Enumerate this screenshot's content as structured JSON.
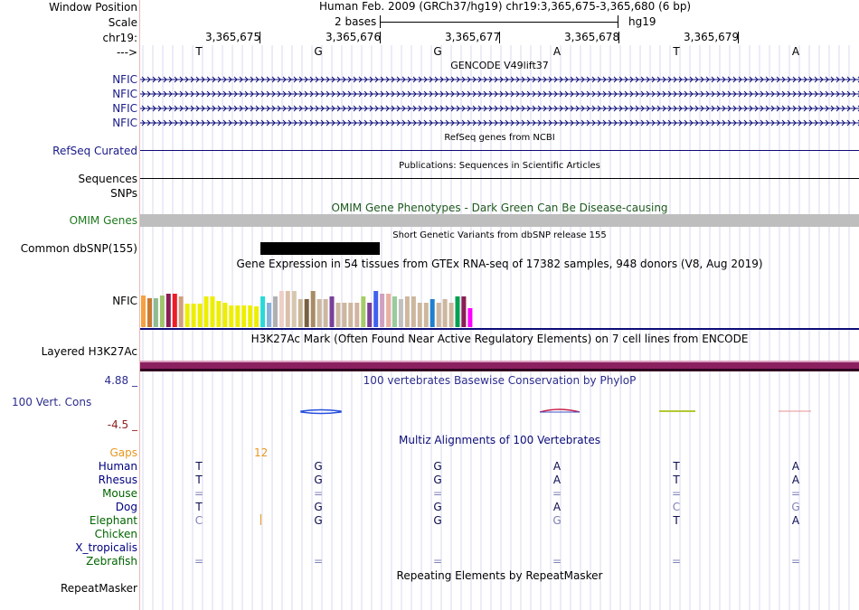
{
  "header": {
    "window_position_label": "Window Position",
    "window_position_value": "Human Feb. 2009 (GRCh37/hg19)   chr19:3,365,675-3,365,680 (6 bp)",
    "scale_label": "Scale",
    "scale_value": "2 bases",
    "assembly": "hg19",
    "chrom_label": "chr19:",
    "coords": [
      "3,365,675",
      "3,365,676",
      "3,365,677",
      "3,365,678",
      "3,365,679"
    ],
    "strand_label": "--->",
    "bases": [
      "T",
      "G",
      "G",
      "A",
      "T",
      "A"
    ]
  },
  "gencode": {
    "title": "GENCODE V49lift37",
    "genes": [
      "NFIC",
      "NFIC",
      "NFIC",
      "NFIC"
    ]
  },
  "refseq": {
    "label": "RefSeq Curated",
    "title": "RefSeq genes from NCBI"
  },
  "publications": {
    "label": "Sequences",
    "title": "Publications: Sequences in Scientific Articles"
  },
  "snps": {
    "label": "SNPs"
  },
  "omim": {
    "label": "OMIM Genes",
    "title": "OMIM Gene Phenotypes - Dark Green Can Be Disease-causing",
    "bar_color": "#bebebe"
  },
  "dbsnp": {
    "label": "Common dbSNP(155)",
    "title": "Short Genetic Variants from dbSNP release 155"
  },
  "gtex": {
    "label": "NFIC",
    "title": "Gene Expression in 54 tissues from GTEx RNA-seq of 17382 samples, 948 donors (V8, Aug 2019)",
    "bars": [
      {
        "level": 0.58,
        "color": "#f5a142"
      },
      {
        "level": 0.53,
        "color": "#ca7a30"
      },
      {
        "level": 0.53,
        "color": "#8fbc8f"
      },
      {
        "level": 0.58,
        "color": "#a0c46c"
      },
      {
        "level": 0.6,
        "color": "#8b1e52"
      },
      {
        "level": 0.6,
        "color": "#ee1c24"
      },
      {
        "level": 0.55,
        "color": "#d0a080"
      },
      {
        "level": 0.42,
        "color": "#eeee00"
      },
      {
        "level": 0.42,
        "color": "#eeee00"
      },
      {
        "level": 0.42,
        "color": "#eeee00"
      },
      {
        "level": 0.55,
        "color": "#eeee00"
      },
      {
        "level": 0.55,
        "color": "#eeee00"
      },
      {
        "level": 0.48,
        "color": "#eeee00"
      },
      {
        "level": 0.45,
        "color": "#eeee00"
      },
      {
        "level": 0.4,
        "color": "#eeee00"
      },
      {
        "level": 0.4,
        "color": "#eeee00"
      },
      {
        "level": 0.4,
        "color": "#eeee00"
      },
      {
        "level": 0.4,
        "color": "#eeee00"
      },
      {
        "level": 0.38,
        "color": "#eeee00"
      },
      {
        "level": 0.55,
        "color": "#29d9d9"
      },
      {
        "level": 0.45,
        "color": "#8ab1d9"
      },
      {
        "level": 0.55,
        "color": "#b0b0b0"
      },
      {
        "level": 0.65,
        "color": "#eecfc7"
      },
      {
        "level": 0.65,
        "color": "#dbbfa8"
      },
      {
        "level": 0.65,
        "color": "#d7c6b0"
      },
      {
        "level": 0.5,
        "color": "#cbb694"
      },
      {
        "level": 0.5,
        "color": "#7a6040"
      },
      {
        "level": 0.65,
        "color": "#a88b67"
      },
      {
        "level": 0.5,
        "color": "#cdb79e"
      },
      {
        "level": 0.5,
        "color": "#cdb79e"
      },
      {
        "level": 0.55,
        "color": "#7a3f99"
      },
      {
        "level": 0.45,
        "color": "#cdb79e"
      },
      {
        "level": 0.45,
        "color": "#cdb79e"
      },
      {
        "level": 0.45,
        "color": "#cdb79e"
      },
      {
        "level": 0.45,
        "color": "#d2b3a1"
      },
      {
        "level": 0.55,
        "color": "#a5cc6a"
      },
      {
        "level": 0.45,
        "color": "#7a3f99"
      },
      {
        "level": 0.65,
        "color": "#4060ee"
      },
      {
        "level": 0.6,
        "color": "#d0a0c0"
      },
      {
        "level": 0.6,
        "color": "#eab0a0"
      },
      {
        "level": 0.55,
        "color": "#99cc99"
      },
      {
        "level": 0.5,
        "color": "#c0c0c0"
      },
      {
        "level": 0.55,
        "color": "#cdb79e"
      },
      {
        "level": 0.55,
        "color": "#cdb79e"
      },
      {
        "level": 0.45,
        "color": "#cdb79e"
      },
      {
        "level": 0.45,
        "color": "#cdb79e"
      },
      {
        "level": 0.5,
        "color": "#1e7fd0"
      },
      {
        "level": 0.45,
        "color": "#cdb79e"
      },
      {
        "level": 0.5,
        "color": "#cdb79e"
      },
      {
        "level": 0.45,
        "color": "#cdb79e"
      },
      {
        "level": 0.55,
        "color": "#00a050"
      },
      {
        "level": 0.55,
        "color": "#8b1e52"
      },
      {
        "level": 0.35,
        "color": "#ff00ff"
      }
    ]
  },
  "h3k27ac": {
    "label": "Layered H3K27Ac",
    "title": "H3K27Ac Mark (Often Found Near Active Regulatory Elements) on 7 cell lines from ENCODE",
    "color_top": "#d9a0c0",
    "color_mid": "#8b2060",
    "color_bottom": "#300020"
  },
  "conservation": {
    "label": "100 Vert. Cons",
    "title": "100 vertebrates Basewise Conservation by PhyloP",
    "y_max": "4.88 _",
    "y_min": "-4.5 _"
  },
  "multiz": {
    "title": "Multiz Alignments of 100 Vertebrates",
    "gaps_label": "Gaps",
    "gaps_value": "12",
    "species": [
      {
        "name": "Human",
        "color": "#000080",
        "bases": [
          "T",
          "G",
          "G",
          "A",
          "T",
          "A"
        ]
      },
      {
        "name": "Rhesus",
        "color": "#000080",
        "bases": [
          "T",
          "G",
          "G",
          "A",
          "T",
          "A"
        ]
      },
      {
        "name": "Mouse",
        "color": "#006400",
        "bases": [
          "=",
          "=",
          "=",
          "=",
          "=",
          "="
        ]
      },
      {
        "name": "Dog",
        "color": "#000080",
        "bases": [
          "T",
          "G",
          "G",
          "A",
          "C",
          "G"
        ]
      },
      {
        "name": "Elephant",
        "color": "#006400",
        "bases": [
          "C",
          "G",
          "G",
          "G",
          "T",
          "A"
        ]
      },
      {
        "name": "Chicken",
        "color": "#006400",
        "bases": [
          "",
          "",
          "",
          "",
          "",
          ""
        ]
      },
      {
        "name": "X_tropicalis",
        "color": "#000080",
        "bases": [
          "",
          "",
          "",
          "",
          "",
          ""
        ]
      },
      {
        "name": "Zebrafish",
        "color": "#006400",
        "bases": [
          "=",
          "=",
          "=",
          "=",
          "=",
          "="
        ]
      }
    ]
  },
  "repeatmasker": {
    "label": "RepeatMasker",
    "title": "Repeating Elements by RepeatMasker"
  }
}
